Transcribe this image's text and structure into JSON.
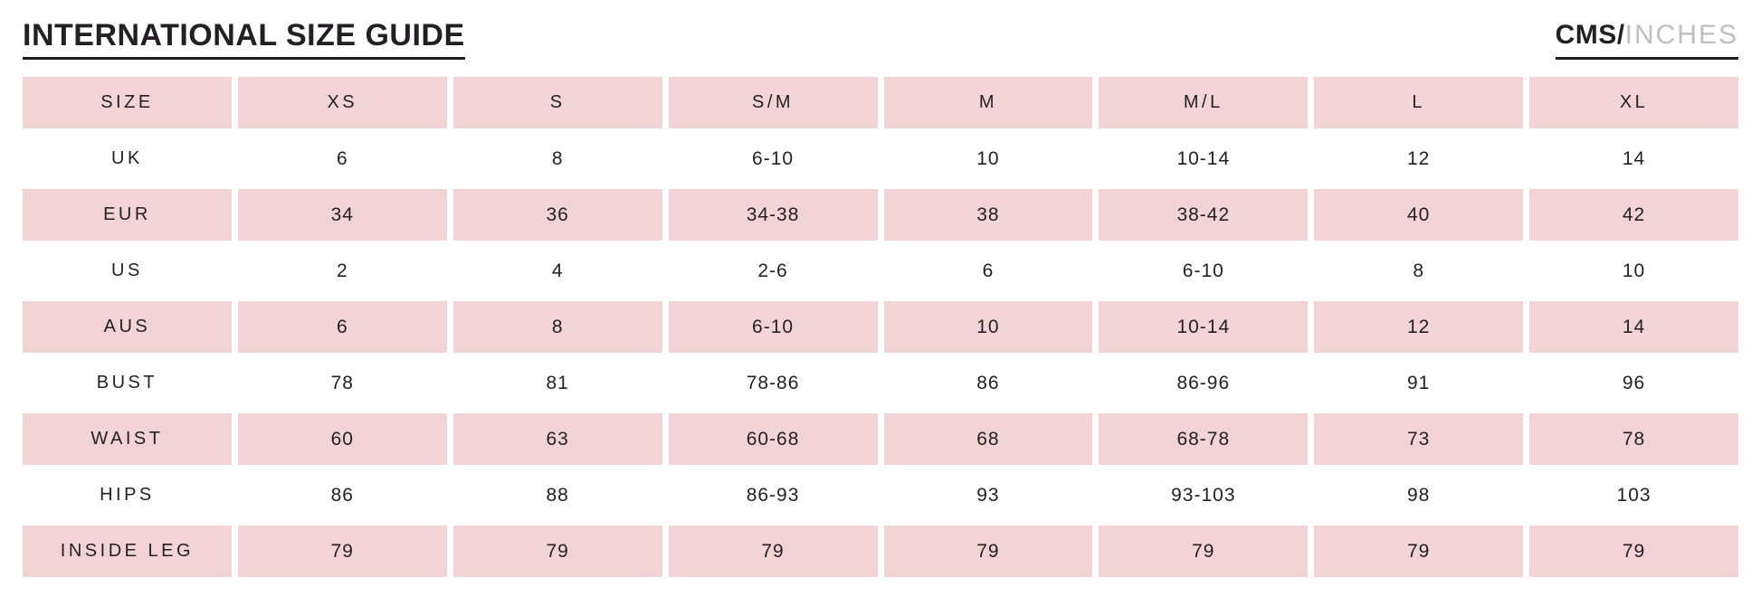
{
  "page": {
    "title": "INTERNATIONAL SIZE GUIDE",
    "units": {
      "primary": "CMS/",
      "secondary": "INCHES"
    }
  },
  "colors": {
    "row_pink": "#f2d3d6",
    "text": "#241f24",
    "inactive_unit": "#c0bfbf",
    "underline": "#1d1d1d"
  },
  "table": {
    "header": [
      "SIZE",
      "XS",
      "S",
      "S/M",
      "M",
      "M/L",
      "L",
      "XL"
    ],
    "rows": [
      {
        "label": "UK",
        "values": [
          "6",
          "8",
          "6-10",
          "10",
          "10-14",
          "12",
          "14"
        ]
      },
      {
        "label": "EUR",
        "values": [
          "34",
          "36",
          "34-38",
          "38",
          "38-42",
          "40",
          "42"
        ]
      },
      {
        "label": "US",
        "values": [
          "2",
          "4",
          "2-6",
          "6",
          "6-10",
          "8",
          "10"
        ]
      },
      {
        "label": "AUS",
        "values": [
          "6",
          "8",
          "6-10",
          "10",
          "10-14",
          "12",
          "14"
        ]
      },
      {
        "label": "BUST",
        "values": [
          "78",
          "81",
          "78-86",
          "86",
          "86-96",
          "91",
          "96"
        ]
      },
      {
        "label": "WAIST",
        "values": [
          "60",
          "63",
          "60-68",
          "68",
          "68-78",
          "73",
          "78"
        ]
      },
      {
        "label": "HIPS",
        "values": [
          "86",
          "88",
          "86-93",
          "93",
          "93-103",
          "98",
          "103"
        ]
      },
      {
        "label": "INSIDE LEG",
        "values": [
          "79",
          "79",
          "79",
          "79",
          "79",
          "79",
          "79"
        ]
      }
    ]
  }
}
